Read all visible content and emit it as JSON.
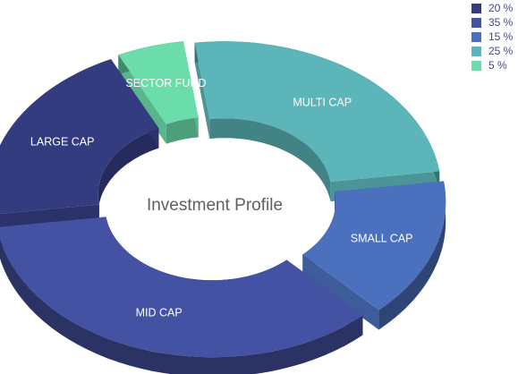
{
  "chart_data": {
    "type": "pie",
    "title": "Investment Profile",
    "slices": [
      {
        "label": "SECTOR FUND",
        "value": 5,
        "color": "#6bddab"
      },
      {
        "label": "MULTI CAP",
        "value": 25,
        "color": "#5cb6b9"
      },
      {
        "label": "SMALL CAP",
        "value": 15,
        "color": "#4b70be"
      },
      {
        "label": "MID CAP",
        "value": 35,
        "color": "#4352a2"
      },
      {
        "label": "LARGE CAP",
        "value": 20,
        "color": "#343c80"
      }
    ],
    "legend": {
      "placement": "top-right",
      "items": [
        {
          "text": "20 %",
          "color": "#343c80"
        },
        {
          "text": "35 %",
          "color": "#4352a2"
        },
        {
          "text": "15 %",
          "color": "#4b70be"
        },
        {
          "text": "25 %",
          "color": "#5cb6b9"
        },
        {
          "text": "5 %",
          "color": "#6bddab"
        }
      ]
    }
  }
}
